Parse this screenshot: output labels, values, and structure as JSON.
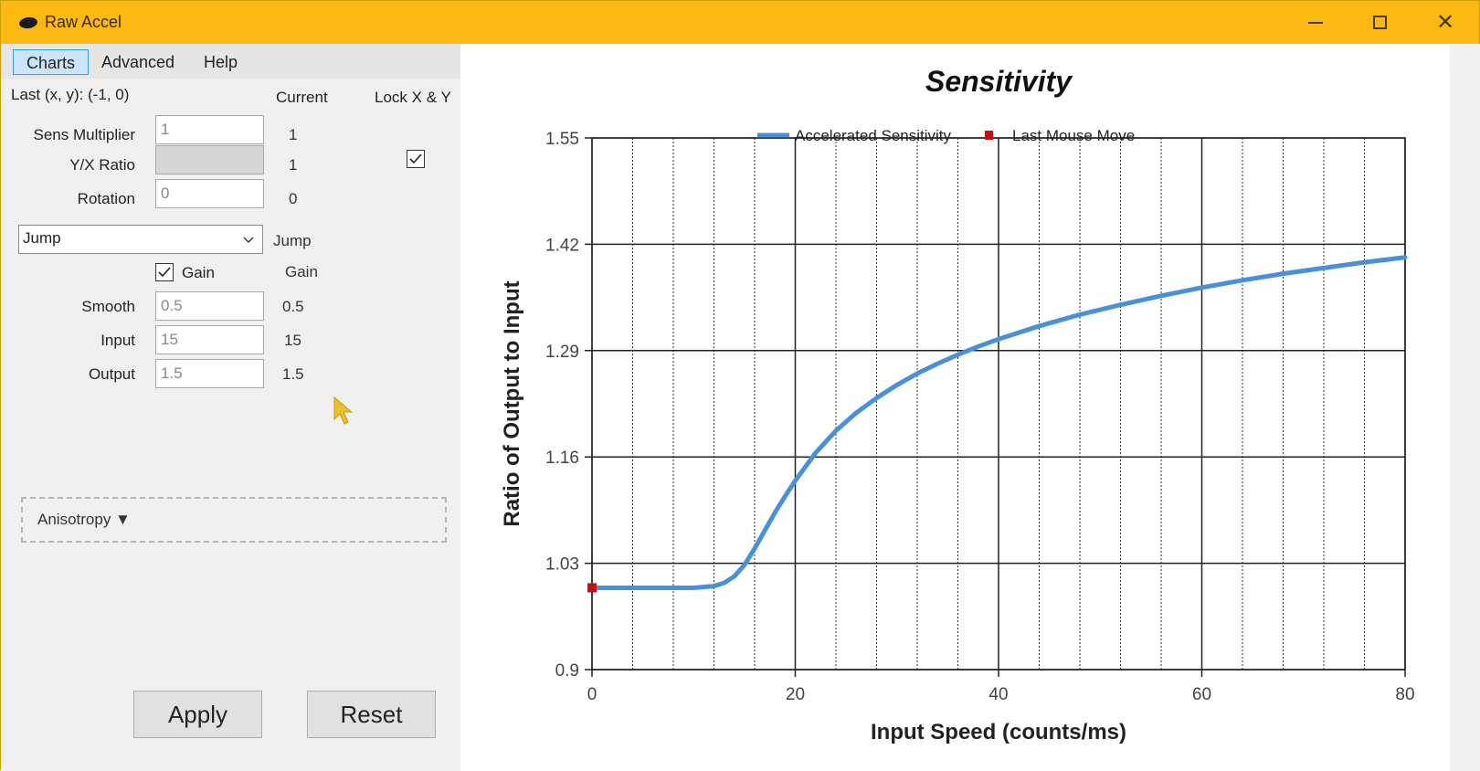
{
  "window": {
    "title": "Raw Accel",
    "controls": {
      "minimize": "—",
      "maximize": "☐",
      "close": "✕"
    }
  },
  "menu": {
    "items": [
      {
        "label": "Charts",
        "active": true
      },
      {
        "label": "Advanced",
        "active": false
      },
      {
        "label": "Help",
        "active": false
      }
    ]
  },
  "settings": {
    "last_xy": "Last (x, y): (-1, 0)",
    "current_header": "Current",
    "lock_header": "Lock X & Y",
    "lock_checked": true,
    "rows": [
      {
        "label": "Sens Multiplier",
        "value": "1",
        "current": "1",
        "disabled": false
      },
      {
        "label": "Y/X Ratio",
        "value": "",
        "current": "1",
        "disabled": true
      },
      {
        "label": "Rotation",
        "value": "0",
        "current": "0",
        "disabled": false
      }
    ],
    "accel_type": {
      "selected": "Jump",
      "current": "Jump"
    },
    "gain": {
      "label": "Gain",
      "checked": true,
      "current": "Gain"
    },
    "params": [
      {
        "label": "Smooth",
        "value": "0.5",
        "current": "0.5"
      },
      {
        "label": "Input",
        "value": "15",
        "current": "15"
      },
      {
        "label": "Output",
        "value": "1.5",
        "current": "1.5"
      }
    ],
    "anisotropy_label": "Anisotropy ▼",
    "apply_label": "Apply",
    "reset_label": "Reset"
  },
  "chart_data": {
    "type": "line",
    "title": "Sensitivity",
    "xlabel": "Input Speed (counts/ms)",
    "ylabel": "Ratio of Output to Input",
    "xlim": [
      0,
      80
    ],
    "ylim": [
      0.9,
      1.55
    ],
    "x_ticks": [
      "0",
      "20",
      "40",
      "60",
      "80"
    ],
    "y_ticks": [
      "0.9",
      "1.03",
      "1.16",
      "1.29",
      "1.42",
      "1.55"
    ],
    "grid": true,
    "minor_x_grid_step": 4,
    "legend_position": "top",
    "legend": [
      "Accelerated Sensitivity",
      "Last Mouse Move"
    ],
    "colors": {
      "series": "#4a90d9",
      "last_move": "#c0101a"
    },
    "series": [
      {
        "name": "Accelerated Sensitivity",
        "x": [
          0,
          4,
          8,
          10,
          12,
          13,
          14,
          15,
          16,
          17,
          18,
          19,
          20,
          22,
          24,
          26,
          28,
          30,
          32,
          34,
          36,
          38,
          40,
          44,
          48,
          52,
          56,
          60,
          64,
          68,
          72,
          76,
          80
        ],
        "y": [
          1.0,
          1.0,
          1.0,
          1.0,
          1.002,
          1.006,
          1.014,
          1.028,
          1.048,
          1.07,
          1.092,
          1.112,
          1.131,
          1.165,
          1.192,
          1.214,
          1.232,
          1.248,
          1.262,
          1.274,
          1.285,
          1.295,
          1.304,
          1.32,
          1.334,
          1.346,
          1.357,
          1.367,
          1.376,
          1.384,
          1.391,
          1.398,
          1.404
        ]
      },
      {
        "name": "Last Mouse Move",
        "x": [
          0
        ],
        "y": [
          1.0
        ]
      }
    ]
  }
}
